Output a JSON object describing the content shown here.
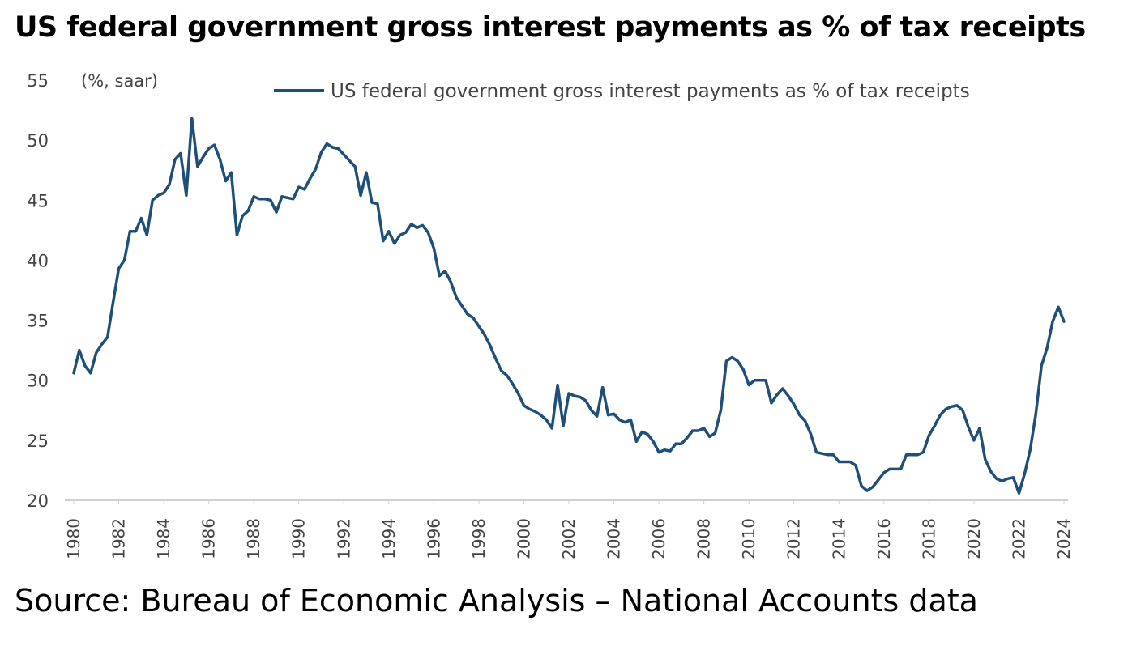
{
  "title": "US federal government gross interest payments as % of tax receipts",
  "source": "Source: Bureau of Economic Analysis – National Accounts data",
  "colors": {
    "series": "#1f4e79",
    "axis": "#d0d0d0",
    "text": "#444444"
  },
  "chart_data": {
    "type": "line",
    "title": "US federal government gross interest payments as % of tax receipts",
    "unit_label": "(%, saar)",
    "xlabel": "",
    "ylabel": "",
    "ylim": [
      20,
      55
    ],
    "xlim": [
      1980,
      2024
    ],
    "y_ticks": [
      "55",
      "50",
      "45",
      "40",
      "35",
      "30",
      "25",
      "20"
    ],
    "x_ticks": [
      "1980",
      "1982",
      "1984",
      "1986",
      "1988",
      "1990",
      "1992",
      "1994",
      "1996",
      "1998",
      "2000",
      "2002",
      "2004",
      "2006",
      "2008",
      "2010",
      "2012",
      "2014",
      "2016",
      "2018",
      "2020",
      "2022",
      "2024"
    ],
    "grid": false,
    "legend_position": "top",
    "series": [
      {
        "name": "US federal government gross interest payments as % of tax receipts",
        "x": [
          1980.0,
          1980.25,
          1980.5,
          1980.75,
          1981.0,
          1981.25,
          1981.5,
          1981.75,
          1982.0,
          1982.25,
          1982.5,
          1982.75,
          1983.0,
          1983.25,
          1983.5,
          1983.75,
          1984.0,
          1984.25,
          1984.5,
          1984.75,
          1985.0,
          1985.25,
          1985.5,
          1985.75,
          1986.0,
          1986.25,
          1986.5,
          1986.75,
          1987.0,
          1987.25,
          1987.5,
          1987.75,
          1988.0,
          1988.25,
          1988.5,
          1988.75,
          1989.0,
          1989.25,
          1989.5,
          1989.75,
          1990.0,
          1990.25,
          1990.5,
          1990.75,
          1991.0,
          1991.25,
          1991.5,
          1991.75,
          1992.0,
          1992.25,
          1992.5,
          1992.75,
          1993.0,
          1993.25,
          1993.5,
          1993.75,
          1994.0,
          1994.25,
          1994.5,
          1994.75,
          1995.0,
          1995.25,
          1995.5,
          1995.75,
          1996.0,
          1996.25,
          1996.5,
          1996.75,
          1997.0,
          1997.25,
          1997.5,
          1997.75,
          1998.0,
          1998.25,
          1998.5,
          1998.75,
          1999.0,
          1999.25,
          1999.5,
          1999.75,
          2000.0,
          2000.25,
          2000.5,
          2000.75,
          2001.0,
          2001.25,
          2001.5,
          2001.75,
          2002.0,
          2002.25,
          2002.5,
          2002.75,
          2003.0,
          2003.25,
          2003.5,
          2003.75,
          2004.0,
          2004.25,
          2004.5,
          2004.75,
          2005.0,
          2005.25,
          2005.5,
          2005.75,
          2006.0,
          2006.25,
          2006.5,
          2006.75,
          2007.0,
          2007.25,
          2007.5,
          2007.75,
          2008.0,
          2008.25,
          2008.5,
          2008.75,
          2009.0,
          2009.25,
          2009.5,
          2009.75,
          2010.0,
          2010.25,
          2010.5,
          2010.75,
          2011.0,
          2011.25,
          2011.5,
          2011.75,
          2012.0,
          2012.25,
          2012.5,
          2012.75,
          2013.0,
          2013.25,
          2013.5,
          2013.75,
          2014.0,
          2014.25,
          2014.5,
          2014.75,
          2015.0,
          2015.25,
          2015.5,
          2015.75,
          2016.0,
          2016.25,
          2016.5,
          2016.75,
          2017.0,
          2017.25,
          2017.5,
          2017.75,
          2018.0,
          2018.25,
          2018.5,
          2018.75,
          2019.0,
          2019.25,
          2019.5,
          2019.75,
          2020.0,
          2020.25,
          2020.5,
          2020.75,
          2021.0,
          2021.25,
          2021.5,
          2021.75,
          2022.0,
          2022.25,
          2022.5,
          2022.75,
          2023.0,
          2023.25,
          2023.5,
          2023.75,
          2024.0
        ],
        "values": [
          30.6,
          32.5,
          31.2,
          30.6,
          32.3,
          33.0,
          33.6,
          36.5,
          39.3,
          40.0,
          42.4,
          42.4,
          43.5,
          42.1,
          45.0,
          45.4,
          45.6,
          46.3,
          48.4,
          48.9,
          45.4,
          51.8,
          47.8,
          48.6,
          49.3,
          49.6,
          48.4,
          46.6,
          47.3,
          42.1,
          43.7,
          44.1,
          45.3,
          45.1,
          45.1,
          45.0,
          44.0,
          45.3,
          45.2,
          45.1,
          46.1,
          45.9,
          46.8,
          47.6,
          49.0,
          49.7,
          49.4,
          49.3,
          48.8,
          48.3,
          47.8,
          45.4,
          47.3,
          44.8,
          44.7,
          41.6,
          42.4,
          41.4,
          42.1,
          42.3,
          43.0,
          42.7,
          42.9,
          42.3,
          41.0,
          38.7,
          39.1,
          38.2,
          36.9,
          36.2,
          35.5,
          35.2,
          34.5,
          33.8,
          32.9,
          31.8,
          30.8,
          30.4,
          29.7,
          28.9,
          27.9,
          27.6,
          27.4,
          27.1,
          26.7,
          26.0,
          29.6,
          26.2,
          28.9,
          28.7,
          28.6,
          28.3,
          27.5,
          27.0,
          29.4,
          27.1,
          27.2,
          26.7,
          26.5,
          26.7,
          24.9,
          25.7,
          25.5,
          24.9,
          24.0,
          24.2,
          24.1,
          24.7,
          24.7,
          25.2,
          25.8,
          25.8,
          26.0,
          25.3,
          25.6,
          27.5,
          31.6,
          31.9,
          31.6,
          30.9,
          29.6,
          30.0,
          30.0,
          30.0,
          28.1,
          28.8,
          29.3,
          28.7,
          28.0,
          27.1,
          26.6,
          25.5,
          24.0,
          23.9,
          23.8,
          23.8,
          23.2,
          23.2,
          23.2,
          22.9,
          21.2,
          20.8,
          21.1,
          21.7,
          22.3,
          22.6,
          22.6,
          22.6,
          23.8,
          23.8,
          23.8,
          24.0,
          25.4,
          26.2,
          27.1,
          27.6,
          27.8,
          27.9,
          27.5,
          26.1,
          25.0,
          26.0,
          23.4,
          22.4,
          21.8,
          21.6,
          21.8,
          21.9,
          20.6,
          22.2,
          24.2,
          27.2,
          31.2,
          32.7,
          34.9,
          36.1,
          34.9
        ]
      }
    ]
  }
}
